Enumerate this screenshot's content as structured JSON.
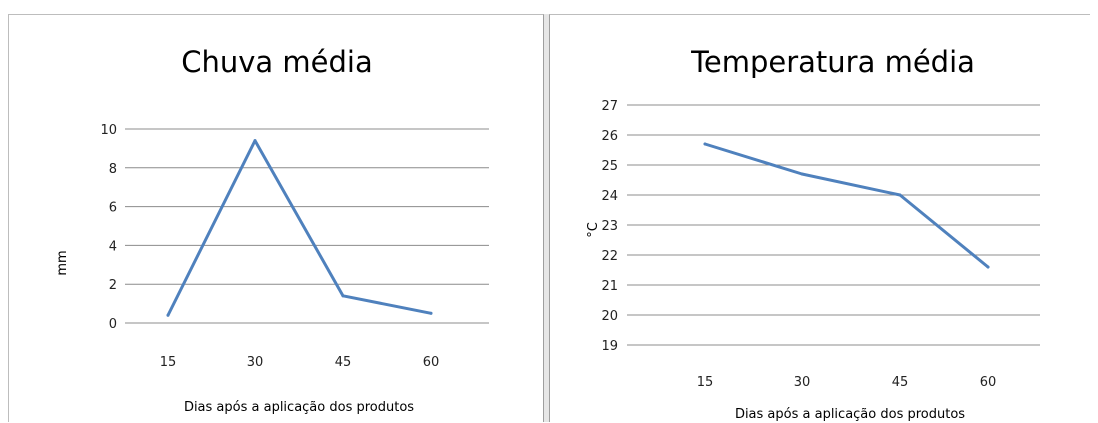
{
  "chart_data": [
    {
      "type": "line",
      "title": "Chuva média",
      "xlabel": "Dias após a aplicação dos produtos",
      "ylabel": "mm",
      "categories": [
        "15",
        "30",
        "45",
        "60"
      ],
      "series": [
        {
          "values": [
            0.4,
            9.4,
            1.4,
            0.5
          ]
        }
      ],
      "ylim": [
        0,
        10
      ],
      "yticks": [
        "0",
        "2",
        "4",
        "6",
        "8",
        "10"
      ],
      "grid": true,
      "legend": "none",
      "color": "#4f81bd"
    },
    {
      "type": "line",
      "title": "Temperatura média",
      "xlabel": "Dias após a aplicação dos produtos",
      "ylabel": "°C",
      "categories": [
        "15",
        "30",
        "45",
        "60"
      ],
      "series": [
        {
          "values": [
            25.7,
            24.7,
            24.0,
            21.6
          ]
        }
      ],
      "ylim": [
        19,
        27
      ],
      "yticks": [
        "19",
        "20",
        "21",
        "22",
        "23",
        "24",
        "25",
        "26",
        "27"
      ],
      "grid": true,
      "legend": "none",
      "color": "#4f81bd"
    }
  ]
}
